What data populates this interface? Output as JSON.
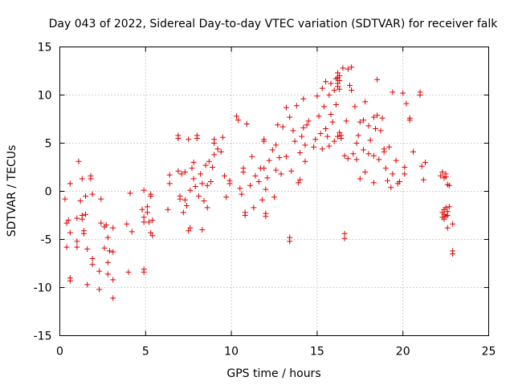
{
  "chart_data": {
    "type": "scatter",
    "title": "Day 043 of 2022, Sidereal Day-to-day VTEC variation (SDTVAR) for receiver falk",
    "xlabel": "GPS time / hours",
    "ylabel": "SDTVAR / TECUs",
    "xlim": [
      0,
      25
    ],
    "ylim": [
      -15,
      15
    ],
    "xticks": [
      0,
      5,
      10,
      15,
      20,
      25
    ],
    "yticks": [
      -15,
      -10,
      -5,
      0,
      5,
      10,
      15
    ],
    "xtick_labels": [
      "0",
      "5",
      "10",
      "15",
      "20",
      "25"
    ],
    "ytick_labels": [
      "-15",
      "-10",
      "-5",
      "0",
      "5",
      "10",
      "15"
    ],
    "grid": true,
    "marker": "plus",
    "color": "#e00000",
    "series": [
      {
        "name": "SDTVAR",
        "points": [
          [
            0.3,
            -0.8
          ],
          [
            0.4,
            -3.3
          ],
          [
            0.4,
            -5.8
          ],
          [
            0.5,
            -3.0
          ],
          [
            0.6,
            0.8
          ],
          [
            0.6,
            -4.3
          ],
          [
            0.6,
            -9.0
          ],
          [
            0.6,
            -9.3
          ],
          [
            1.0,
            -2.8
          ],
          [
            1.0,
            -5.2
          ],
          [
            1.0,
            -5.8
          ],
          [
            1.1,
            3.1
          ],
          [
            1.2,
            -1.0
          ],
          [
            1.3,
            -2.5
          ],
          [
            1.3,
            -2.9
          ],
          [
            1.3,
            1.3
          ],
          [
            1.4,
            -4.1
          ],
          [
            1.4,
            -4.4
          ],
          [
            1.5,
            -2.4
          ],
          [
            1.5,
            -0.5
          ],
          [
            1.6,
            -6.0
          ],
          [
            1.6,
            -9.7
          ],
          [
            1.8,
            1.3
          ],
          [
            1.8,
            1.6
          ],
          [
            1.9,
            -7.0
          ],
          [
            1.9,
            -7.6
          ],
          [
            1.9,
            -0.3
          ],
          [
            2.3,
            -8.3
          ],
          [
            2.3,
            -10.2
          ],
          [
            2.4,
            -3.3
          ],
          [
            2.4,
            -0.8
          ],
          [
            2.6,
            -5.9
          ],
          [
            2.6,
            -3.7
          ],
          [
            2.7,
            -3.5
          ],
          [
            2.8,
            -4.8
          ],
          [
            2.8,
            -7.4
          ],
          [
            2.8,
            -8.6
          ],
          [
            2.9,
            -6.2
          ],
          [
            3.1,
            -3.8
          ],
          [
            3.1,
            -9.2
          ],
          [
            3.1,
            -11.1
          ],
          [
            3.1,
            -6.3
          ],
          [
            3.9,
            -3.4
          ],
          [
            4.0,
            -8.4
          ],
          [
            4.1,
            -0.2
          ],
          [
            4.2,
            -4.2
          ],
          [
            4.8,
            -1.9
          ],
          [
            4.9,
            0.1
          ],
          [
            4.9,
            -2.7
          ],
          [
            4.9,
            -3.2
          ],
          [
            4.9,
            -8.1
          ],
          [
            4.9,
            -8.4
          ],
          [
            5.1,
            -1.6
          ],
          [
            5.1,
            -2.2
          ],
          [
            5.2,
            -3.2
          ],
          [
            5.3,
            -0.5
          ],
          [
            5.3,
            -0.3
          ],
          [
            5.3,
            -4.3
          ],
          [
            5.4,
            -4.6
          ],
          [
            5.4,
            -3.0
          ],
          [
            6.3,
            -1.9
          ],
          [
            6.4,
            0.8
          ],
          [
            6.4,
            1.7
          ],
          [
            6.9,
            5.8
          ],
          [
            6.9,
            5.5
          ],
          [
            6.9,
            2.1
          ],
          [
            7.0,
            -0.5
          ],
          [
            7.0,
            -0.8
          ],
          [
            7.1,
            1.8
          ],
          [
            7.2,
            -2.2
          ],
          [
            7.3,
            2.0
          ],
          [
            7.3,
            -0.9
          ],
          [
            7.4,
            -1.5
          ],
          [
            7.5,
            5.4
          ],
          [
            7.5,
            -4.1
          ],
          [
            7.6,
            0.1
          ],
          [
            7.6,
            -3.8
          ],
          [
            7.7,
            2.4
          ],
          [
            7.8,
            1.3
          ],
          [
            7.8,
            3.0
          ],
          [
            7.9,
            0.5
          ],
          [
            8.0,
            5.8
          ],
          [
            8.0,
            5.5
          ],
          [
            8.1,
            -0.5
          ],
          [
            8.2,
            1.8
          ],
          [
            8.3,
            -4.0
          ],
          [
            8.3,
            0.8
          ],
          [
            8.4,
            -1.0
          ],
          [
            8.5,
            2.7
          ],
          [
            8.6,
            0.6
          ],
          [
            8.6,
            -1.7
          ],
          [
            8.7,
            3.1
          ],
          [
            8.8,
            1.0
          ],
          [
            8.9,
            2.5
          ],
          [
            9.0,
            5.4
          ],
          [
            9.0,
            5.0
          ],
          [
            9.0,
            3.8
          ],
          [
            9.2,
            4.4
          ],
          [
            9.4,
            4.1
          ],
          [
            9.5,
            5.6
          ],
          [
            9.6,
            1.6
          ],
          [
            9.7,
            -0.6
          ],
          [
            9.9,
            0.8
          ],
          [
            9.9,
            1.1
          ],
          [
            10.3,
            7.8
          ],
          [
            10.4,
            7.4
          ],
          [
            10.5,
            0.3
          ],
          [
            10.6,
            -0.3
          ],
          [
            10.7,
            2.4
          ],
          [
            10.7,
            2.0
          ],
          [
            10.8,
            -2.2
          ],
          [
            10.8,
            -2.5
          ],
          [
            10.9,
            7.0
          ],
          [
            11.1,
            0.6
          ],
          [
            11.2,
            3.6
          ],
          [
            11.3,
            -1.7
          ],
          [
            11.4,
            1.6
          ],
          [
            11.6,
            1.0
          ],
          [
            11.7,
            2.4
          ],
          [
            11.8,
            -0.9
          ],
          [
            11.9,
            5.4
          ],
          [
            11.9,
            5.2
          ],
          [
            11.9,
            2.4
          ],
          [
            12.0,
            0.2
          ],
          [
            12.0,
            -2.3
          ],
          [
            12.0,
            -2.6
          ],
          [
            12.1,
            1.4
          ],
          [
            12.2,
            3.2
          ],
          [
            12.4,
            4.3
          ],
          [
            12.5,
            -0.6
          ],
          [
            12.6,
            2.2
          ],
          [
            12.6,
            4.8
          ],
          [
            12.7,
            6.9
          ],
          [
            12.8,
            3.5
          ],
          [
            12.9,
            1.8
          ],
          [
            13.0,
            6.7
          ],
          [
            13.2,
            8.7
          ],
          [
            13.2,
            3.6
          ],
          [
            13.4,
            7.7
          ],
          [
            13.4,
            -4.8
          ],
          [
            13.4,
            -5.2
          ],
          [
            13.5,
            2.1
          ],
          [
            13.6,
            6.3
          ],
          [
            13.7,
            5.2
          ],
          [
            13.8,
            8.9
          ],
          [
            13.9,
            0.9
          ],
          [
            14.0,
            1.2
          ],
          [
            14.0,
            4.0
          ],
          [
            14.1,
            5.7
          ],
          [
            14.2,
            9.6
          ],
          [
            14.2,
            6.6
          ],
          [
            14.3,
            4.8
          ],
          [
            14.3,
            3.1
          ],
          [
            14.4,
            6.9
          ],
          [
            14.5,
            7.3
          ],
          [
            14.8,
            4.6
          ],
          [
            14.9,
            5.4
          ],
          [
            15.0,
            9.9
          ],
          [
            15.1,
            7.8
          ],
          [
            15.2,
            6.0
          ],
          [
            15.3,
            10.7
          ],
          [
            15.3,
            4.4
          ],
          [
            15.4,
            8.8
          ],
          [
            15.5,
            6.5
          ],
          [
            15.5,
            11.4
          ],
          [
            15.6,
            5.7
          ],
          [
            15.7,
            4.7
          ],
          [
            15.7,
            10.0
          ],
          [
            15.8,
            11.2
          ],
          [
            15.8,
            8.0
          ],
          [
            15.9,
            7.2
          ],
          [
            16.0,
            10.5
          ],
          [
            16.0,
            5.2
          ],
          [
            16.1,
            9.0
          ],
          [
            16.1,
            11.7
          ],
          [
            16.2,
            12.3
          ],
          [
            16.2,
            11.8
          ],
          [
            16.2,
            11.2
          ],
          [
            16.2,
            10.9
          ],
          [
            16.2,
            5.7
          ],
          [
            16.3,
            12.0
          ],
          [
            16.3,
            11.5
          ],
          [
            16.3,
            10.6
          ],
          [
            16.3,
            6.1
          ],
          [
            16.4,
            5.8
          ],
          [
            16.4,
            5.5
          ],
          [
            16.5,
            12.8
          ],
          [
            16.6,
            3.7
          ],
          [
            16.6,
            -4.4
          ],
          [
            16.6,
            -4.9
          ],
          [
            16.7,
            7.3
          ],
          [
            16.8,
            12.7
          ],
          [
            16.8,
            3.4
          ],
          [
            16.9,
            11.0
          ],
          [
            17.0,
            12.9
          ],
          [
            17.0,
            10.5
          ],
          [
            17.1,
            3.9
          ],
          [
            17.2,
            8.8
          ],
          [
            17.3,
            5.0
          ],
          [
            17.3,
            3.3
          ],
          [
            17.4,
            5.8
          ],
          [
            17.5,
            7.2
          ],
          [
            17.5,
            1.3
          ],
          [
            17.7,
            7.4
          ],
          [
            17.7,
            4.3
          ],
          [
            17.8,
            9.3
          ],
          [
            17.8,
            2.0
          ],
          [
            18.0,
            6.8
          ],
          [
            18.0,
            3.9
          ],
          [
            18.1,
            5.3
          ],
          [
            18.3,
            3.7
          ],
          [
            18.3,
            7.7
          ],
          [
            18.3,
            0.9
          ],
          [
            18.4,
            6.5
          ],
          [
            18.5,
            11.6
          ],
          [
            18.5,
            7.9
          ],
          [
            18.6,
            3.3
          ],
          [
            18.7,
            6.3
          ],
          [
            18.8,
            7.6
          ],
          [
            18.9,
            4.4
          ],
          [
            18.9,
            4.1
          ],
          [
            19.0,
            2.4
          ],
          [
            19.1,
            1.1
          ],
          [
            19.2,
            4.6
          ],
          [
            19.3,
            0.4
          ],
          [
            19.4,
            10.3
          ],
          [
            19.4,
            1.8
          ],
          [
            19.6,
            3.2
          ],
          [
            19.7,
            0.8
          ],
          [
            19.8,
            1.0
          ],
          [
            20.0,
            10.2
          ],
          [
            20.1,
            2.5
          ],
          [
            20.1,
            1.8
          ],
          [
            20.2,
            9.1
          ],
          [
            20.4,
            7.6
          ],
          [
            20.4,
            7.4
          ],
          [
            20.6,
            4.1
          ],
          [
            21.0,
            10.3
          ],
          [
            21.0,
            10.0
          ],
          [
            21.1,
            2.6
          ],
          [
            21.2,
            1.2
          ],
          [
            21.3,
            3.0
          ],
          [
            22.2,
            1.6
          ],
          [
            22.3,
            2.0
          ],
          [
            22.3,
            -2.2
          ],
          [
            22.3,
            -2.7
          ],
          [
            22.4,
            1.4
          ],
          [
            22.4,
            -1.9
          ],
          [
            22.4,
            -2.4
          ],
          [
            22.4,
            -2.9
          ],
          [
            22.5,
            1.8
          ],
          [
            22.5,
            1.5
          ],
          [
            22.5,
            -1.7
          ],
          [
            22.5,
            -2.6
          ],
          [
            22.6,
            0.7
          ],
          [
            22.6,
            -2.1
          ],
          [
            22.6,
            -2.5
          ],
          [
            22.6,
            -3.8
          ],
          [
            22.7,
            0.6
          ],
          [
            22.7,
            -1.6
          ],
          [
            22.9,
            -3.4
          ],
          [
            22.9,
            -6.2
          ],
          [
            22.9,
            -6.5
          ]
        ]
      }
    ]
  }
}
